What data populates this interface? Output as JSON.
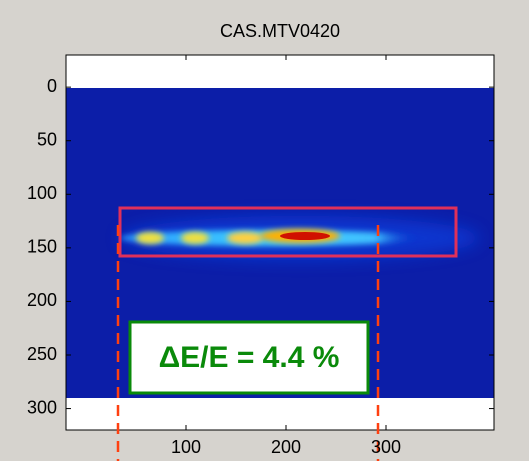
{
  "chart_data": {
    "type": "image",
    "title": "CAS.MTV0420",
    "xlim": [
      -20,
      408
    ],
    "ylim": [
      -30,
      320
    ],
    "ydir": "reverse",
    "xticks": [
      100,
      200,
      300
    ],
    "yticks": [
      0,
      50,
      100,
      150,
      200,
      250,
      300
    ],
    "annotation": "ΔE/E = 4.4 %"
  }
}
